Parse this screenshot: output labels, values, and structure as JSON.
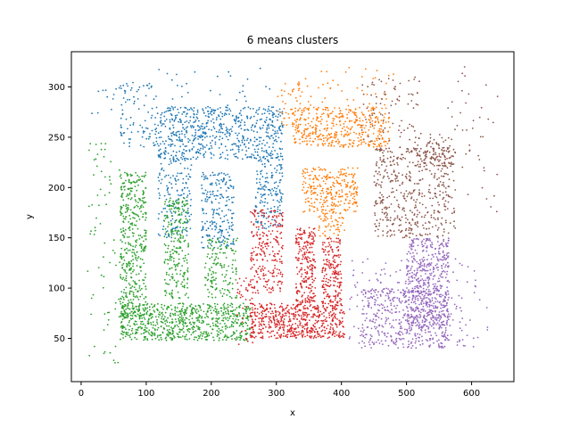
{
  "chart_data": {
    "type": "scatter",
    "title": "6 means clusters",
    "xlabel": "x",
    "ylabel": "y",
    "xlim": [
      -15,
      665
    ],
    "ylim": [
      7,
      335
    ],
    "xticks": [
      0,
      100,
      200,
      300,
      400,
      500,
      600
    ],
    "yticks": [
      50,
      100,
      150,
      200,
      250,
      300
    ],
    "grid": false,
    "marker_radius": 0.9,
    "clusters": [
      {
        "color": "#1f77b4",
        "regions": [
          {
            "x": [
              118,
              310
            ],
            "y": [
              228,
              280
            ],
            "n": 620
          },
          {
            "x": [
              118,
              170
            ],
            "y": [
              150,
              232
            ],
            "n": 170
          },
          {
            "x": [
              185,
              235
            ],
            "y": [
              140,
              215
            ],
            "n": 210
          },
          {
            "x": [
              268,
              310
            ],
            "y": [
              158,
              232
            ],
            "n": 170
          },
          {
            "x": [
              60,
              118
            ],
            "y": [
              240,
              305
            ],
            "n": 95
          },
          {
            "x": [
              118,
              300
            ],
            "y": [
              280,
              320
            ],
            "n": 30
          },
          {
            "x": [
              15,
              118
            ],
            "y": [
              270,
              300
            ],
            "n": 12
          }
        ]
      },
      {
        "color": "#ff7f0e",
        "regions": [
          {
            "x": [
              325,
              475
            ],
            "y": [
              240,
              280
            ],
            "n": 420
          },
          {
            "x": [
              340,
              425
            ],
            "y": [
              175,
              220
            ],
            "n": 280
          },
          {
            "x": [
              365,
              405
            ],
            "y": [
              150,
              175
            ],
            "n": 60
          },
          {
            "x": [
              300,
              340
            ],
            "y": [
              260,
              305
            ],
            "n": 45
          },
          {
            "x": [
              340,
              480
            ],
            "y": [
              280,
              320
            ],
            "n": 40
          }
        ]
      },
      {
        "color": "#2ca02c",
        "regions": [
          {
            "x": [
              60,
              100
            ],
            "y": [
              70,
              215
            ],
            "n": 420
          },
          {
            "x": [
              60,
              260
            ],
            "y": [
              48,
              85
            ],
            "n": 720
          },
          {
            "x": [
              128,
              165
            ],
            "y": [
              90,
              190
            ],
            "n": 240
          },
          {
            "x": [
              190,
              240
            ],
            "y": [
              90,
              150
            ],
            "n": 140
          },
          {
            "x": [
              10,
              60
            ],
            "y": [
              25,
              250
            ],
            "n": 70
          }
        ]
      },
      {
        "color": "#d62728",
        "regions": [
          {
            "x": [
              260,
              405
            ],
            "y": [
              50,
              85
            ],
            "n": 580
          },
          {
            "x": [
              260,
              310
            ],
            "y": [
              95,
              178
            ],
            "n": 240
          },
          {
            "x": [
              330,
              360
            ],
            "y": [
              85,
              160
            ],
            "n": 230
          },
          {
            "x": [
              370,
              400
            ],
            "y": [
              85,
              150
            ],
            "n": 190
          },
          {
            "x": [
              240,
              265
            ],
            "y": [
              40,
              110
            ],
            "n": 40
          }
        ]
      },
      {
        "color": "#8c564b",
        "regions": [
          {
            "x": [
              450,
              575
            ],
            "y": [
              150,
              240
            ],
            "n": 480
          },
          {
            "x": [
              510,
              570
            ],
            "y": [
              220,
              255
            ],
            "n": 90
          },
          {
            "x": [
              430,
              520
            ],
            "y": [
              245,
              310
            ],
            "n": 80
          },
          {
            "x": [
              560,
              640
            ],
            "y": [
              170,
              320
            ],
            "n": 45
          }
        ]
      },
      {
        "color": "#9467bd",
        "regions": [
          {
            "x": [
              500,
              565
            ],
            "y": [
              60,
              150
            ],
            "n": 540
          },
          {
            "x": [
              430,
              565
            ],
            "y": [
              40,
              100
            ],
            "n": 400
          },
          {
            "x": [
              410,
              500
            ],
            "y": [
              40,
              130
            ],
            "n": 70
          },
          {
            "x": [
              560,
              630
            ],
            "y": [
              40,
              130
            ],
            "n": 50
          }
        ]
      }
    ]
  }
}
